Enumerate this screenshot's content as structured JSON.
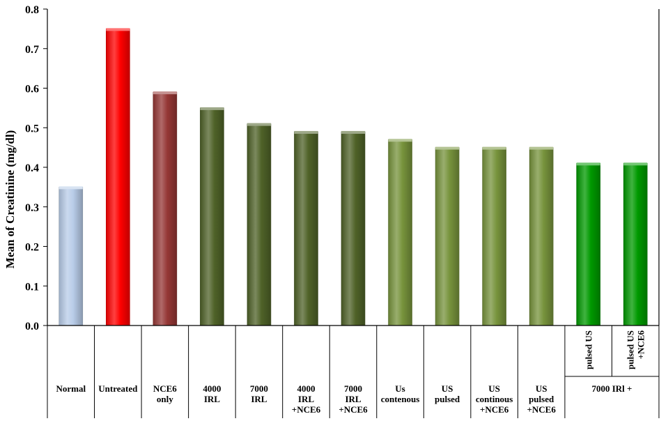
{
  "chart_data": {
    "type": "bar",
    "ylabel": "Mean of Creatinine (mg/dl)",
    "ylim": [
      0,
      0.8
    ],
    "ytick_step": 0.1,
    "ytick_labels": [
      "0.0",
      "0.1",
      "0.2",
      "0.3",
      "0.4",
      "0.5",
      "0.6",
      "0.7",
      "0.8"
    ],
    "grid": false,
    "categories": [
      [
        "Normal"
      ],
      [
        "Untreated"
      ],
      [
        "NCE6",
        "only"
      ],
      [
        "4000",
        "IRL"
      ],
      [
        "7000",
        "IRL"
      ],
      [
        "4000",
        "IRL",
        "+NCE6"
      ],
      [
        "7000",
        "IRL",
        "+NCE6"
      ],
      [
        "Us",
        "contenous"
      ],
      [
        "US",
        "pulsed"
      ],
      [
        "US",
        "continous",
        "+NCE6"
      ],
      [
        "US",
        "pulsed",
        "+NCE6"
      ],
      [
        "pulsed US"
      ],
      [
        "pulsed US",
        "+NCE6"
      ]
    ],
    "values": [
      0.35,
      0.75,
      0.59,
      0.55,
      0.51,
      0.49,
      0.49,
      0.47,
      0.45,
      0.45,
      0.45,
      0.41,
      0.41
    ],
    "colors": [
      "#b8cce8",
      "#ff0000",
      "#953735",
      "#4f6228",
      "#4f6228",
      "#4f6228",
      "#4f6228",
      "#77933c",
      "#77933c",
      "#77933c",
      "#77933c",
      "#009900",
      "#009900"
    ],
    "group_label": "7000 IRl +"
  }
}
